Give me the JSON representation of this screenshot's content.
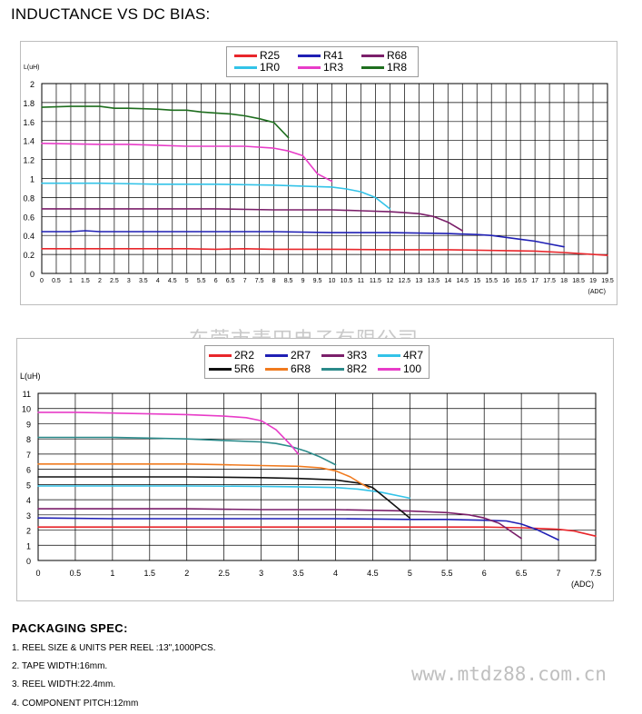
{
  "page_title": "INDUCTANCE VS DC BIAS:",
  "watermarks": {
    "company_cn": "东莞市麦田电子有限公司",
    "site_url": "www.mtdz88.com.cn"
  },
  "packaging": {
    "title": "PACKAGING  SPEC:",
    "items": [
      "1. REEL SIZE & UNITS PER REEL :13\",1000PCS.",
      "2. TAPE WIDTH:16mm.",
      "3. REEL WIDTH:22.4mm.",
      "4. COMPONENT PITCH:12mm"
    ]
  },
  "chart_data": [
    {
      "type": "line",
      "title": "",
      "ylabel": "L(uH)",
      "xlabel": "(ADC)",
      "xlim": [
        0,
        19.5
      ],
      "ylim": [
        0,
        2
      ],
      "x_ticks": [
        "0",
        "0.5",
        "1",
        "1.5",
        "2",
        "2.5",
        "3",
        "3.5",
        "4",
        "4.5",
        "5",
        "5.5",
        "6",
        "6.5",
        "7",
        "7.5",
        "8",
        "8.5",
        "9",
        "9.5",
        "10",
        "10.5",
        "11",
        "11.5",
        "12",
        "12.5",
        "13",
        "13.5",
        "14",
        "14.5",
        "15",
        "15.5",
        "16",
        "16.5",
        "17",
        "17.5",
        "18",
        "18.5",
        "19",
        "19.5"
      ],
      "y_ticks": [
        "0",
        "0.2",
        "0.4",
        "0.6",
        "0.8",
        "1",
        "1.2",
        "1.4",
        "1.6",
        "1.8",
        "2"
      ],
      "grid": true,
      "legend_position": "top-center",
      "series": [
        {
          "name": "R25",
          "color": "#e8262b",
          "points": [
            [
              0,
              0.26
            ],
            [
              1,
              0.26
            ],
            [
              2,
              0.26
            ],
            [
              3,
              0.26
            ],
            [
              4,
              0.26
            ],
            [
              5,
              0.26
            ],
            [
              6,
              0.255
            ],
            [
              7,
              0.26
            ],
            [
              8,
              0.255
            ],
            [
              10,
              0.255
            ],
            [
              12,
              0.25
            ],
            [
              14,
              0.25
            ],
            [
              16,
              0.24
            ],
            [
              17,
              0.235
            ],
            [
              18,
              0.22
            ],
            [
              19,
              0.2
            ],
            [
              19.5,
              0.19
            ]
          ]
        },
        {
          "name": "R41",
          "color": "#1f1fb4",
          "points": [
            [
              0,
              0.44
            ],
            [
              1,
              0.44
            ],
            [
              1.5,
              0.45
            ],
            [
              2,
              0.44
            ],
            [
              4,
              0.44
            ],
            [
              6,
              0.44
            ],
            [
              8,
              0.44
            ],
            [
              10,
              0.43
            ],
            [
              12,
              0.43
            ],
            [
              14,
              0.42
            ],
            [
              15,
              0.41
            ],
            [
              15.5,
              0.4
            ],
            [
              16,
              0.38
            ],
            [
              16.5,
              0.36
            ],
            [
              17,
              0.34
            ],
            [
              17.5,
              0.31
            ],
            [
              18,
              0.28
            ]
          ]
        },
        {
          "name": "R68",
          "color": "#7b1f6a",
          "points": [
            [
              0,
              0.68
            ],
            [
              2,
              0.68
            ],
            [
              4,
              0.68
            ],
            [
              6,
              0.68
            ],
            [
              8,
              0.67
            ],
            [
              10,
              0.67
            ],
            [
              11,
              0.66
            ],
            [
              12,
              0.65
            ],
            [
              12.5,
              0.64
            ],
            [
              13,
              0.63
            ],
            [
              13.5,
              0.6
            ],
            [
              14,
              0.54
            ],
            [
              14.5,
              0.45
            ]
          ]
        },
        {
          "name": "1R0",
          "color": "#33c3e8",
          "points": [
            [
              0,
              0.95
            ],
            [
              2,
              0.95
            ],
            [
              4,
              0.94
            ],
            [
              6,
              0.94
            ],
            [
              8,
              0.93
            ],
            [
              9,
              0.92
            ],
            [
              10,
              0.91
            ],
            [
              10.5,
              0.89
            ],
            [
              11,
              0.86
            ],
            [
              11.5,
              0.8
            ],
            [
              12,
              0.68
            ]
          ]
        },
        {
          "name": "1R3",
          "color": "#e83cc8",
          "points": [
            [
              0,
              1.37
            ],
            [
              2,
              1.36
            ],
            [
              3,
              1.36
            ],
            [
              4,
              1.35
            ],
            [
              5,
              1.34
            ],
            [
              6,
              1.34
            ],
            [
              7,
              1.34
            ],
            [
              8,
              1.32
            ],
            [
              8.5,
              1.29
            ],
            [
              9,
              1.24
            ],
            [
              9.5,
              1.05
            ],
            [
              10,
              0.97
            ]
          ]
        },
        {
          "name": "1R8",
          "color": "#1e6e1e",
          "points": [
            [
              0,
              1.75
            ],
            [
              1,
              1.76
            ],
            [
              2,
              1.76
            ],
            [
              2.5,
              1.74
            ],
            [
              3,
              1.74
            ],
            [
              4,
              1.73
            ],
            [
              4.5,
              1.72
            ],
            [
              5,
              1.72
            ],
            [
              5.5,
              1.7
            ],
            [
              6,
              1.69
            ],
            [
              6.5,
              1.68
            ],
            [
              7,
              1.66
            ],
            [
              7.5,
              1.63
            ],
            [
              8,
              1.59
            ],
            [
              8.5,
              1.43
            ]
          ]
        }
      ]
    },
    {
      "type": "line",
      "title": "",
      "ylabel": "L(uH)",
      "xlabel": "(ADC)",
      "xlim": [
        0,
        7.5
      ],
      "ylim": [
        0,
        11
      ],
      "x_ticks": [
        "0",
        "0.5",
        "1",
        "1.5",
        "2",
        "2.5",
        "3",
        "3.5",
        "4",
        "4.5",
        "5",
        "5.5",
        "6",
        "6.5",
        "7",
        "7.5"
      ],
      "y_ticks": [
        "0",
        "1",
        "2",
        "3",
        "4",
        "5",
        "6",
        "7",
        "8",
        "9",
        "10",
        "11"
      ],
      "grid": true,
      "legend_position": "top-center",
      "series": [
        {
          "name": "2R2",
          "color": "#e8262b",
          "points": [
            [
              0,
              2.2
            ],
            [
              1,
              2.2
            ],
            [
              2,
              2.2
            ],
            [
              3,
              2.2
            ],
            [
              4,
              2.2
            ],
            [
              5,
              2.2
            ],
            [
              6,
              2.2
            ],
            [
              6.5,
              2.15
            ],
            [
              6.8,
              2.1
            ],
            [
              7,
              2.05
            ],
            [
              7.2,
              1.95
            ],
            [
              7.5,
              1.6
            ]
          ]
        },
        {
          "name": "2R7",
          "color": "#1f1fb4",
          "points": [
            [
              0,
              2.8
            ],
            [
              1,
              2.75
            ],
            [
              2,
              2.75
            ],
            [
              3,
              2.75
            ],
            [
              4,
              2.75
            ],
            [
              5,
              2.7
            ],
            [
              5.5,
              2.7
            ],
            [
              6,
              2.65
            ],
            [
              6.3,
              2.6
            ],
            [
              6.5,
              2.4
            ],
            [
              6.7,
              2.05
            ],
            [
              7,
              1.35
            ]
          ]
        },
        {
          "name": "3R3",
          "color": "#7b1f6a",
          "points": [
            [
              0,
              3.4
            ],
            [
              1,
              3.4
            ],
            [
              2,
              3.4
            ],
            [
              3,
              3.35
            ],
            [
              4,
              3.35
            ],
            [
              5,
              3.25
            ],
            [
              5.5,
              3.15
            ],
            [
              5.8,
              3.0
            ],
            [
              6,
              2.8
            ],
            [
              6.2,
              2.45
            ],
            [
              6.5,
              1.45
            ]
          ]
        },
        {
          "name": "4R7",
          "color": "#33c3e8",
          "points": [
            [
              0,
              4.9
            ],
            [
              1,
              4.9
            ],
            [
              2,
              4.9
            ],
            [
              3,
              4.88
            ],
            [
              3.5,
              4.85
            ],
            [
              4,
              4.8
            ],
            [
              4.3,
              4.7
            ],
            [
              4.6,
              4.5
            ],
            [
              5,
              4.1
            ]
          ]
        },
        {
          "name": "5R6",
          "color": "#111111",
          "points": [
            [
              0,
              5.5
            ],
            [
              1,
              5.5
            ],
            [
              2,
              5.5
            ],
            [
              3,
              5.45
            ],
            [
              3.5,
              5.4
            ],
            [
              4,
              5.3
            ],
            [
              4.3,
              5.1
            ],
            [
              4.5,
              4.8
            ],
            [
              4.7,
              4.0
            ],
            [
              5,
              2.8
            ]
          ]
        },
        {
          "name": "6R8",
          "color": "#f07a1e",
          "points": [
            [
              0,
              6.35
            ],
            [
              1,
              6.35
            ],
            [
              2,
              6.35
            ],
            [
              2.5,
              6.3
            ],
            [
              3,
              6.25
            ],
            [
              3.5,
              6.2
            ],
            [
              3.8,
              6.1
            ],
            [
              4,
              5.9
            ],
            [
              4.2,
              5.5
            ],
            [
              4.45,
              4.75
            ]
          ]
        },
        {
          "name": "8R2",
          "color": "#2b8a8a",
          "points": [
            [
              0,
              8.1
            ],
            [
              1,
              8.1
            ],
            [
              1.5,
              8.05
            ],
            [
              2,
              8.0
            ],
            [
              2.5,
              7.9
            ],
            [
              3,
              7.8
            ],
            [
              3.2,
              7.7
            ],
            [
              3.4,
              7.5
            ],
            [
              3.6,
              7.2
            ],
            [
              3.8,
              6.8
            ],
            [
              4,
              6.3
            ]
          ]
        },
        {
          "name": "100",
          "color": "#e83cc8",
          "points": [
            [
              0,
              9.75
            ],
            [
              0.5,
              9.75
            ],
            [
              1,
              9.7
            ],
            [
              1.5,
              9.65
            ],
            [
              2,
              9.6
            ],
            [
              2.5,
              9.5
            ],
            [
              2.8,
              9.4
            ],
            [
              3,
              9.2
            ],
            [
              3.2,
              8.6
            ],
            [
              3.4,
              7.6
            ],
            [
              3.5,
              7.0
            ]
          ]
        }
      ]
    }
  ]
}
